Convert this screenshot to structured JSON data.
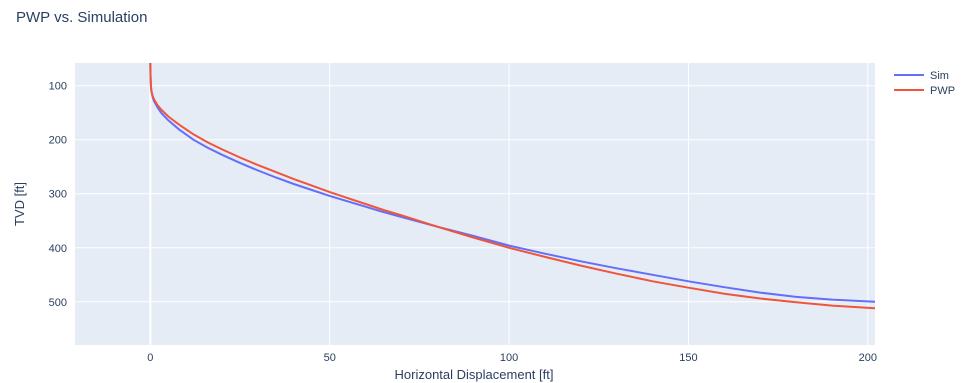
{
  "chart_data": {
    "type": "line",
    "title": "PWP vs. Simulation",
    "xlabel": "Horizontal Displacement [ft]",
    "ylabel": "TVD [ft]",
    "xlim": [
      -21,
      202
    ],
    "ylim": [
      580,
      58
    ],
    "y_reversed": true,
    "xticks": [
      0,
      50,
      100,
      150,
      200
    ],
    "yticks": [
      100,
      200,
      300,
      400,
      500
    ],
    "grid": true,
    "legend_position": "top-right",
    "colors": {
      "plot_bg": "#e5ecf6",
      "grid": "#ffffff",
      "text": "#2a3f5f"
    },
    "series": [
      {
        "name": "Sim",
        "color": "#636efa",
        "points": [
          [
            0,
            58
          ],
          [
            0.05,
            80
          ],
          [
            0.15,
            100
          ],
          [
            0.3,
            110
          ],
          [
            0.6,
            120
          ],
          [
            1,
            128
          ],
          [
            2,
            140
          ],
          [
            3,
            150
          ],
          [
            5,
            164
          ],
          [
            8,
            181
          ],
          [
            12,
            200
          ],
          [
            16,
            215
          ],
          [
            20,
            228
          ],
          [
            25,
            243
          ],
          [
            30,
            257
          ],
          [
            35,
            270
          ],
          [
            40,
            282
          ],
          [
            45,
            293
          ],
          [
            50,
            304
          ],
          [
            55,
            314
          ],
          [
            60,
            324
          ],
          [
            65,
            334
          ],
          [
            70,
            343
          ],
          [
            80,
            361
          ],
          [
            90,
            378
          ],
          [
            100,
            396
          ],
          [
            110,
            411
          ],
          [
            120,
            425
          ],
          [
            130,
            438
          ],
          [
            140,
            450
          ],
          [
            150,
            462
          ],
          [
            160,
            473
          ],
          [
            170,
            483
          ],
          [
            180,
            491
          ],
          [
            190,
            496
          ],
          [
            202,
            500
          ]
        ]
      },
      {
        "name": "PWP",
        "color": "#ef553b",
        "points": [
          [
            0,
            58
          ],
          [
            0.05,
            80
          ],
          [
            0.15,
            100
          ],
          [
            0.3,
            110
          ],
          [
            0.6,
            118
          ],
          [
            1,
            125
          ],
          [
            2,
            136
          ],
          [
            3,
            144
          ],
          [
            5,
            157
          ],
          [
            8,
            172
          ],
          [
            12,
            190
          ],
          [
            16,
            205
          ],
          [
            20,
            218
          ],
          [
            25,
            233
          ],
          [
            30,
            247
          ],
          [
            35,
            260
          ],
          [
            40,
            273
          ],
          [
            45,
            285
          ],
          [
            50,
            297
          ],
          [
            55,
            308
          ],
          [
            60,
            319
          ],
          [
            65,
            330
          ],
          [
            70,
            340
          ],
          [
            80,
            361
          ],
          [
            90,
            381
          ],
          [
            100,
            400
          ],
          [
            110,
            417
          ],
          [
            120,
            433
          ],
          [
            130,
            448
          ],
          [
            140,
            462
          ],
          [
            150,
            474
          ],
          [
            160,
            485
          ],
          [
            170,
            494
          ],
          [
            180,
            501
          ],
          [
            190,
            507
          ],
          [
            202,
            512
          ]
        ]
      }
    ]
  }
}
